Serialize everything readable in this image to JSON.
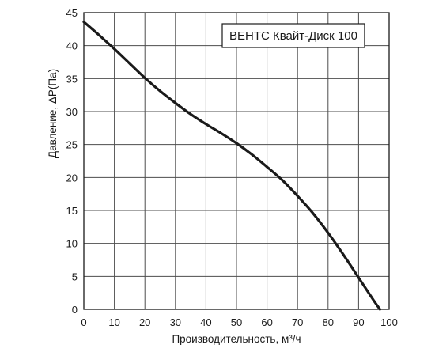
{
  "chart_data": {
    "type": "line",
    "title": "",
    "xlabel": "Производительность, м³/ч",
    "ylabel": "Давление, ΔP(Па)",
    "xlim": [
      0,
      100
    ],
    "ylim": [
      0,
      45
    ],
    "x_ticks": [
      0,
      10,
      20,
      30,
      40,
      50,
      60,
      70,
      80,
      90,
      100
    ],
    "y_ticks": [
      0,
      5,
      10,
      15,
      20,
      25,
      30,
      35,
      40,
      45
    ],
    "grid": true,
    "legend_position": "top-right",
    "series": [
      {
        "name": "ВЕНТС Квайт-Диск 100",
        "color": "#1a1a1a",
        "x": [
          0,
          5,
          10,
          15,
          20,
          25,
          30,
          35,
          40,
          45,
          50,
          55,
          60,
          65,
          70,
          75,
          80,
          85,
          90,
          95,
          97
        ],
        "y": [
          43.6,
          41.6,
          39.5,
          37.3,
          35.1,
          33.1,
          31.3,
          29.6,
          28.1,
          26.7,
          25.2,
          23.5,
          21.6,
          19.6,
          17.2,
          14.6,
          11.6,
          8.3,
          4.8,
          1.3,
          0
        ]
      }
    ]
  }
}
